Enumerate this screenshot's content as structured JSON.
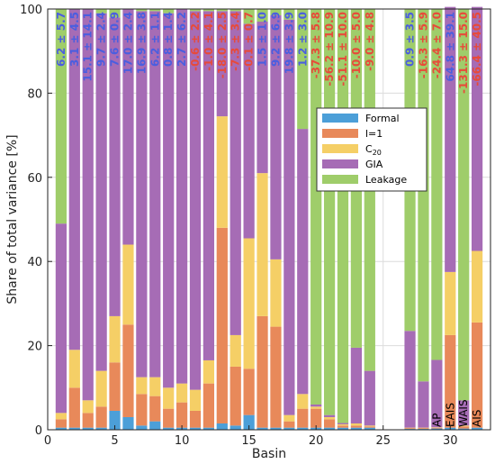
{
  "chart_data": {
    "type": "bar",
    "stacked": true,
    "xlabel": "Basin",
    "ylabel": "Share of total variance [%]",
    "xlim": [
      0,
      33
    ],
    "ylim": [
      0,
      100
    ],
    "xticks": [
      0,
      5,
      10,
      15,
      20,
      25,
      30
    ],
    "yticks": [
      0,
      20,
      40,
      60,
      80,
      100
    ],
    "grid": true,
    "legend_position": "center-right",
    "series": [
      {
        "name": "Formal",
        "color": "#4c9fd8"
      },
      {
        "name": "l=1",
        "color": "#e8895a"
      },
      {
        "name": "C20",
        "color": "#f5cf66"
      },
      {
        "name": "GIA",
        "color": "#a66cb5"
      },
      {
        "name": "Leakage",
        "color": "#9fcd6a"
      }
    ],
    "legend_labels": {
      "formal": "Formal",
      "l1": "l=1",
      "c20_base": "C",
      "c20_sub": "20",
      "gia": "GIA",
      "leakage": "Leakage"
    },
    "bars": [
      {
        "x": 1,
        "formal": 0.5,
        "l1": 2.0,
        "c20": 1.5,
        "gia": 45,
        "label": "6.2 ± 5.7",
        "label_color": "#4a5ee0"
      },
      {
        "x": 2,
        "formal": 0.5,
        "l1": 9.5,
        "c20": 9.0,
        "gia": 81,
        "label": "3.1 ± 4.5",
        "label_color": "#4a5ee0"
      },
      {
        "x": 3,
        "formal": 0.5,
        "l1": 3.5,
        "c20": 3.0,
        "gia": 93,
        "label": "15.1 ± 14.1",
        "label_color": "#4a5ee0"
      },
      {
        "x": 4,
        "formal": 0.5,
        "l1": 5.0,
        "c20": 8.5,
        "gia": 85,
        "label": "9.7 ± 2.4",
        "label_color": "#4a5ee0"
      },
      {
        "x": 5,
        "formal": 4.5,
        "l1": 11.5,
        "c20": 11.0,
        "gia": 71,
        "label": "7.6 ± 0.9",
        "label_color": "#4a5ee0"
      },
      {
        "x": 6,
        "formal": 3.0,
        "l1": 22.0,
        "c20": 19.0,
        "gia": 56,
        "label": "17.0 ± 2.4",
        "label_color": "#4a5ee0"
      },
      {
        "x": 7,
        "formal": 1.0,
        "l1": 7.5,
        "c20": 4.0,
        "gia": 87,
        "label": "16.9 ± 3.8",
        "label_color": "#4a5ee0"
      },
      {
        "x": 8,
        "formal": 2.0,
        "l1": 6.0,
        "c20": 4.5,
        "gia": 87,
        "label": "6.2 ± 1.1",
        "label_color": "#4a5ee0"
      },
      {
        "x": 9,
        "formal": 0.5,
        "l1": 4.5,
        "c20": 5.0,
        "gia": 89,
        "label": "0.8 ± 1.4",
        "label_color": "#4a5ee0"
      },
      {
        "x": 10,
        "formal": 0.5,
        "l1": 6.0,
        "c20": 4.5,
        "gia": 89,
        "label": "2.7 ± 6.2",
        "label_color": "#4a5ee0"
      },
      {
        "x": 11,
        "formal": 0.5,
        "l1": 4.0,
        "c20": 5.0,
        "gia": 90,
        "label": "-0.6 ± 2.2",
        "label_color": "#e84a3a"
      },
      {
        "x": 12,
        "formal": 0.5,
        "l1": 10.5,
        "c20": 5.5,
        "gia": 83,
        "label": "-1.0 ± 4.1",
        "label_color": "#e84a3a"
      },
      {
        "x": 13,
        "formal": 1.5,
        "l1": 46.5,
        "c20": 26.5,
        "gia": 25,
        "label": "-18.0 ± 2.5",
        "label_color": "#e84a3a"
      },
      {
        "x": 14,
        "formal": 1.0,
        "l1": 14.0,
        "c20": 7.5,
        "gia": 77,
        "label": "-7.3 ± 3.4",
        "label_color": "#e84a3a"
      },
      {
        "x": 15,
        "formal": 3.5,
        "l1": 11.0,
        "c20": 31.0,
        "gia": 51,
        "label": "-0.1 ± 0.7",
        "label_color": "#e84a3a"
      },
      {
        "x": 16,
        "formal": 0.5,
        "l1": 26.5,
        "c20": 34.0,
        "gia": 36,
        "label": "1.5 ± 1.0",
        "label_color": "#4a5ee0"
      },
      {
        "x": 17,
        "formal": 0.5,
        "l1": 24.0,
        "c20": 16.0,
        "gia": 58,
        "label": "9.2 ± 6.9",
        "label_color": "#4a5ee0"
      },
      {
        "x": 18,
        "formal": 0.5,
        "l1": 1.5,
        "c20": 1.5,
        "gia": 94,
        "label": "19.8 ± 3.9",
        "label_color": "#4a5ee0"
      },
      {
        "x": 19,
        "formal": 0.5,
        "l1": 4.5,
        "c20": 3.5,
        "gia": 63,
        "label": "1.2 ± 3.0",
        "label_color": "#4a5ee0"
      },
      {
        "x": 20,
        "formal": 0.5,
        "l1": 4.5,
        "c20": 0.5,
        "gia": 0.5,
        "label": "-37.3 ± 5.8",
        "label_color": "#e84a3a"
      },
      {
        "x": 21,
        "formal": 0.5,
        "l1": 2.0,
        "c20": 0.5,
        "gia": 0.5,
        "label": "-56.2 ± 10.9",
        "label_color": "#e84a3a"
      },
      {
        "x": 22,
        "formal": 0.5,
        "l1": 0.5,
        "c20": 0.3,
        "gia": 0.3,
        "label": "-51.1 ± 10.0",
        "label_color": "#e84a3a"
      },
      {
        "x": 23,
        "formal": 0.5,
        "l1": 0.5,
        "c20": 0.5,
        "gia": 18,
        "label": "-10.0 ± 5.0",
        "label_color": "#e84a3a"
      },
      {
        "x": 24,
        "formal": 0.5,
        "l1": 0.3,
        "c20": 0.2,
        "gia": 13,
        "label": "-9.0 ± 4.8",
        "label_color": "#e84a3a"
      },
      {
        "x": 25,
        "formal": 0,
        "l1": 0,
        "c20": 0,
        "gia": 0,
        "leak": 0,
        "label": "",
        "label_color": "#e84a3a"
      },
      {
        "x": 26,
        "formal": 0,
        "l1": 0,
        "c20": 0,
        "gia": 0,
        "leak": 0,
        "label": "",
        "label_color": "#e84a3a"
      },
      {
        "x": 27,
        "formal": 0.2,
        "l1": 0.2,
        "c20": 0.1,
        "gia": 23,
        "label": "0.9 ± 3.5",
        "label_color": "#4a5ee0"
      },
      {
        "x": 28,
        "formal": 0.2,
        "l1": 0.2,
        "c20": 0.1,
        "gia": 11,
        "label": "-16.3 ± 5.9",
        "label_color": "#e84a3a"
      },
      {
        "x": 29,
        "formal": 0.3,
        "l1": 0.2,
        "c20": 0.1,
        "gia": 16,
        "label": "-24.4 ± 7.0",
        "label_color": "#e84a3a"
      },
      {
        "x": 30,
        "formal": 0.5,
        "l1": 22.0,
        "c20": 15.0,
        "gia": 63,
        "label": "64.8 ± 39.1",
        "label_color": "#4a5ee0"
      },
      {
        "x": 31,
        "formal": 0.3,
        "l1": 0.5,
        "c20": 0.2,
        "gia": 6,
        "label": "-131.3 ± 15.0",
        "label_color": "#e84a3a"
      },
      {
        "x": 32,
        "formal": 0.5,
        "l1": 25.0,
        "c20": 17.0,
        "gia": 58,
        "label": "-66.4 ± 40.5",
        "label_color": "#e84a3a"
      }
    ],
    "region_labels": [
      {
        "x": 29,
        "text": "AP"
      },
      {
        "x": 30,
        "text": "EAIS"
      },
      {
        "x": 31,
        "text": "WAIS"
      },
      {
        "x": 32,
        "text": "AIS"
      }
    ]
  }
}
